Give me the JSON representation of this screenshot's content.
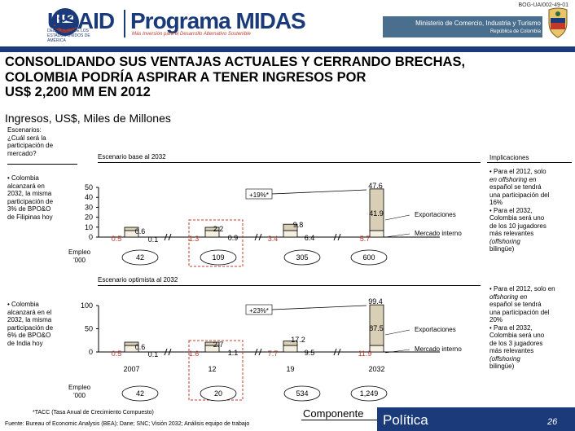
{
  "header": {
    "doc_id": "BOG-UAI002-49-01",
    "usaid": "USAID",
    "usaid_sub": "DEL PUEBLO DE LOS ESTADOS UNIDOS DE AMÉRICA",
    "program": "Programa MIDAS",
    "program_sub": "Más Inversión para el Desarrollo Alternativo Sostenible",
    "ministerio": "Ministerio de Comercio, Industria y Turismo",
    "republica": "República de Colombia"
  },
  "slide": {
    "title_lines": [
      "CONSOLIDANDO SUS VENTAJAS ACTUALES Y CERRANDO BRECHAS,",
      "COLOMBIA PODRÍA ASPIRAR A TENER INGRESOS POR",
      "US$ 2,200 MM EN 2012"
    ],
    "subtitle": "Ingresos, US$, Miles de Millones",
    "escenarios_lines": [
      "Escenarios:",
      "¿Cuál será la",
      "participación de",
      "mercado?"
    ],
    "implicaciones": "Implicaciones",
    "empleo_lines": [
      "Empleo",
      "'000"
    ]
  },
  "scenarios": [
    {
      "label": "Escenario base al 2032",
      "desc_lines": [
        "• Colombia",
        "alcanzará en",
        "2032, la misma",
        "participación de",
        "3% de BPO&O",
        "de Filipinas hoy"
      ],
      "impl_lines": [
        "• Para el 2012, solo",
        "en offshoring en",
        "español se tendrá",
        "una participación del",
        "16%",
        "• Para el 2032,",
        "Colombia será uno",
        "de los 10 jugadores",
        "más relevantes",
        "(offshoring",
        "bilingüe)"
      ],
      "growth": "+19%*"
    },
    {
      "label": "Escenario optimista al 2032",
      "desc_lines": [
        "• Colombia",
        "alcanzará en el",
        "2032, la misma",
        "participación de",
        "6% de BPO&O",
        "de India hoy"
      ],
      "impl_lines": [
        "• Para el 2012, solo en",
        "offshoring en",
        "español se tendrá",
        "una participación del",
        "20%",
        "• Para el 2032,",
        "Colombia será uno",
        "de los 3 jugadores",
        "más relevantes",
        "(offshoring",
        "bilingüe)"
      ],
      "growth": "+23%*"
    }
  ],
  "chart_data": [
    {
      "type": "bar",
      "title": "Escenario base al 2032",
      "categories": [
        "2007",
        "12",
        "19",
        "2032"
      ],
      "ylim": [
        0,
        50
      ],
      "yticks": [
        "50",
        "40",
        "30",
        "20",
        "10",
        "0"
      ],
      "series": [
        {
          "name": "Mercado interno",
          "values": [
            0.5,
            1.3,
            3.4,
            5.7
          ]
        },
        {
          "name": "Exportaciones",
          "values": [
            0.1,
            0.9,
            6.4,
            41.9
          ]
        }
      ],
      "totals": [
        0.6,
        2.2,
        9.8,
        47.6
      ],
      "empleo": [
        "42",
        "109",
        "305",
        "600"
      ],
      "legend": [
        "Exportaciones",
        "Mercado interno"
      ]
    },
    {
      "type": "bar",
      "title": "Escenario optimista al 2032",
      "categories": [
        "2007",
        "12",
        "19",
        "2032"
      ],
      "ylim": [
        0,
        100
      ],
      "yticks": [
        "100",
        "50",
        "0"
      ],
      "series": [
        {
          "name": "Mercado interno",
          "values": [
            0.5,
            1.6,
            7.7,
            11.9
          ]
        },
        {
          "name": "Exportaciones",
          "values": [
            0.1,
            1.1,
            9.5,
            87.5
          ]
        }
      ],
      "totals": [
        0.6,
        2.7,
        17.2,
        99.4
      ],
      "empleo": [
        "42",
        "20",
        "534",
        "1,249"
      ],
      "legend": [
        "Exportaciones",
        "Mercado interno"
      ]
    }
  ],
  "footer": {
    "note": "*TACC (Tasa Anual de Crecimiento Compuesto)",
    "source": "Fuente: Bureau of Economic Analysis (BEA); Dane; SNC; Visión 2032; Análisis equipo de trabajo",
    "componente": "Componente",
    "politica": "Política",
    "page": "26"
  },
  "colors": {
    "navy": "#1a3a7a",
    "export_fill": "#d9cfb6",
    "interno_fill": "#c0392b",
    "dashed_box": "#c0392b",
    "bar_stroke": "#000000"
  }
}
